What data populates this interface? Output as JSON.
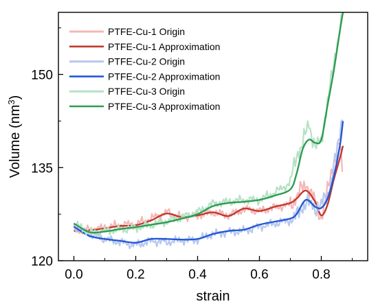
{
  "chart_data": {
    "type": "line",
    "title": "",
    "xlabel": "strain",
    "ylabel": "Volume (nm³)",
    "ylabel_parts": {
      "prefix": "Volume (nm",
      "sup": "3",
      "suffix": ")"
    },
    "xlim": [
      -0.05,
      0.95
    ],
    "ylim": [
      120,
      160
    ],
    "xticks": [
      0.0,
      0.2,
      0.4,
      0.6,
      0.8
    ],
    "xtick_labels": [
      "0.0",
      "0.2",
      "0.4",
      "0.6",
      "0.8"
    ],
    "yticks": [
      120,
      135,
      150
    ],
    "ytick_labels": [
      "120",
      "135",
      "150"
    ],
    "grid": false,
    "legend_position": "top-left",
    "series": [
      {
        "name": "PTFE-Cu-1 Origin",
        "color": "#f4b6b6",
        "style": "noisy",
        "x": [
          0.0,
          0.05,
          0.1,
          0.15,
          0.2,
          0.25,
          0.3,
          0.35,
          0.4,
          0.45,
          0.5,
          0.55,
          0.6,
          0.65,
          0.7,
          0.72,
          0.75,
          0.78,
          0.8,
          0.82,
          0.84,
          0.86,
          0.87
        ],
        "y": [
          124.8,
          125.0,
          125.3,
          125.8,
          125.9,
          126.8,
          127.8,
          127.0,
          127.3,
          127.8,
          127.3,
          128.3,
          128.0,
          128.6,
          129.0,
          130.3,
          132.5,
          129.5,
          127.0,
          131.0,
          136.0,
          139.0,
          133.0
        ]
      },
      {
        "name": "PTFE-Cu-1 Approximation",
        "color": "#c0392b",
        "style": "smooth",
        "x": [
          0.0,
          0.05,
          0.1,
          0.15,
          0.2,
          0.25,
          0.3,
          0.35,
          0.4,
          0.45,
          0.5,
          0.55,
          0.6,
          0.65,
          0.7,
          0.72,
          0.75,
          0.78,
          0.8,
          0.82,
          0.84,
          0.86,
          0.87
        ],
        "y": [
          124.8,
          124.9,
          125.2,
          125.6,
          125.7,
          126.5,
          127.6,
          127.0,
          127.3,
          127.8,
          127.2,
          128.4,
          128.0,
          128.7,
          129.3,
          130.0,
          131.3,
          129.5,
          127.3,
          129.0,
          133.0,
          136.5,
          138.5
        ]
      },
      {
        "name": "PTFE-Cu-2 Origin",
        "color": "#b7c8ee",
        "style": "noisy",
        "x": [
          0.0,
          0.05,
          0.1,
          0.15,
          0.2,
          0.25,
          0.3,
          0.35,
          0.4,
          0.45,
          0.5,
          0.55,
          0.6,
          0.65,
          0.7,
          0.72,
          0.75,
          0.78,
          0.8,
          0.82,
          0.84,
          0.86,
          0.87
        ],
        "y": [
          125.5,
          124.3,
          123.5,
          123.0,
          122.5,
          123.2,
          123.0,
          123.3,
          123.4,
          124.3,
          124.6,
          124.8,
          125.5,
          126.0,
          126.5,
          127.2,
          129.5,
          128.5,
          129.0,
          130.5,
          135.0,
          140.0,
          145.0
        ]
      },
      {
        "name": "PTFE-Cu-2 Approximation",
        "color": "#2457d6",
        "style": "smooth",
        "x": [
          0.0,
          0.05,
          0.1,
          0.15,
          0.2,
          0.25,
          0.3,
          0.35,
          0.4,
          0.45,
          0.5,
          0.55,
          0.6,
          0.65,
          0.7,
          0.72,
          0.75,
          0.78,
          0.8,
          0.82,
          0.84,
          0.86,
          0.87
        ],
        "y": [
          125.5,
          124.0,
          123.5,
          123.2,
          122.9,
          123.5,
          123.5,
          123.4,
          123.5,
          124.3,
          124.8,
          125.0,
          125.8,
          126.3,
          126.8,
          127.5,
          129.8,
          128.7,
          128.5,
          130.0,
          133.5,
          138.5,
          142.5
        ]
      },
      {
        "name": "PTFE-Cu-3 Origin",
        "color": "#b5e2c4",
        "style": "noisy",
        "x": [
          0.0,
          0.05,
          0.1,
          0.15,
          0.2,
          0.25,
          0.3,
          0.35,
          0.4,
          0.45,
          0.5,
          0.55,
          0.6,
          0.65,
          0.7,
          0.72,
          0.74,
          0.76,
          0.78,
          0.8,
          0.82,
          0.84,
          0.86,
          0.87
        ],
        "y": [
          126.0,
          124.5,
          124.8,
          125.0,
          125.3,
          125.8,
          126.3,
          127.0,
          127.8,
          129.2,
          129.5,
          129.8,
          129.8,
          131.0,
          132.5,
          137.0,
          139.0,
          142.0,
          138.5,
          139.0,
          146.0,
          151.0,
          158.0,
          160.0
        ]
      },
      {
        "name": "PTFE-Cu-3 Approximation",
        "color": "#2e9b52",
        "style": "smooth",
        "x": [
          0.0,
          0.05,
          0.1,
          0.15,
          0.2,
          0.25,
          0.3,
          0.35,
          0.4,
          0.45,
          0.5,
          0.55,
          0.6,
          0.65,
          0.7,
          0.72,
          0.74,
          0.76,
          0.78,
          0.8,
          0.82,
          0.84,
          0.86,
          0.87
        ],
        "y": [
          126.0,
          124.6,
          124.7,
          125.1,
          125.4,
          125.8,
          126.2,
          126.8,
          127.5,
          128.8,
          129.3,
          129.5,
          129.8,
          130.5,
          131.5,
          134.0,
          138.0,
          139.5,
          139.0,
          139.5,
          145.0,
          150.5,
          157.0,
          160.0
        ]
      }
    ]
  }
}
